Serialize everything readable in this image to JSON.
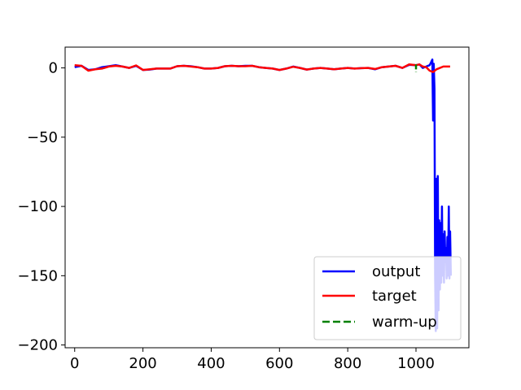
{
  "chart_data": {
    "type": "line",
    "title": "",
    "xlabel": "",
    "ylabel": "",
    "xlim": [
      -28,
      1155
    ],
    "ylim": [
      -202,
      15
    ],
    "x_ticks": [
      0,
      200,
      400,
      600,
      800,
      1000
    ],
    "y_ticks": [
      0,
      -50,
      -100,
      -150,
      -200
    ],
    "x_tick_labels": [
      "0",
      "200",
      "400",
      "600",
      "800",
      "1000"
    ],
    "y_tick_labels": [
      "0",
      "−50",
      "−100",
      "−150",
      "−200"
    ],
    "grid": false,
    "legend": {
      "position": "lower right",
      "entries": [
        "output",
        "target",
        "warm-up"
      ]
    },
    "series": [
      {
        "name": "output",
        "color": "#0000ff",
        "style": "solid",
        "points": [
          [
            0,
            0.5
          ],
          [
            20,
            1.5
          ],
          [
            40,
            -1.5
          ],
          [
            60,
            -1
          ],
          [
            80,
            0.5
          ],
          [
            100,
            1.2
          ],
          [
            120,
            2
          ],
          [
            140,
            1
          ],
          [
            160,
            0
          ],
          [
            180,
            1.5
          ],
          [
            200,
            -1.5
          ],
          [
            220,
            -1.2
          ],
          [
            240,
            -0.5
          ],
          [
            260,
            -0.5
          ],
          [
            280,
            -0.5
          ],
          [
            300,
            1.2
          ],
          [
            320,
            1.5
          ],
          [
            340,
            1.2
          ],
          [
            360,
            0.5
          ],
          [
            380,
            -0.5
          ],
          [
            400,
            -0.5
          ],
          [
            420,
            0
          ],
          [
            440,
            1.2
          ],
          [
            460,
            1.5
          ],
          [
            480,
            1.2
          ],
          [
            500,
            1.5
          ],
          [
            520,
            1.5
          ],
          [
            540,
            0.5
          ],
          [
            560,
            0
          ],
          [
            580,
            -0.5
          ],
          [
            600,
            -1.5
          ],
          [
            620,
            -0.5
          ],
          [
            640,
            1
          ],
          [
            660,
            0
          ],
          [
            680,
            -1.2
          ],
          [
            700,
            -0.5
          ],
          [
            720,
            0
          ],
          [
            740,
            -0.5
          ],
          [
            760,
            -1
          ],
          [
            780,
            -0.5
          ],
          [
            800,
            0
          ],
          [
            820,
            -0.5
          ],
          [
            840,
            -0.2
          ],
          [
            860,
            0
          ],
          [
            880,
            -1
          ],
          [
            900,
            0.5
          ],
          [
            920,
            1
          ],
          [
            940,
            1.5
          ],
          [
            960,
            0
          ],
          [
            980,
            2.2
          ],
          [
            1000,
            2
          ],
          [
            1010,
            2.5
          ],
          [
            1020,
            0
          ],
          [
            1030,
            1
          ],
          [
            1040,
            2
          ],
          [
            1044,
            4
          ],
          [
            1048,
            6
          ],
          [
            1050,
            -38
          ],
          [
            1052,
            3
          ],
          [
            1054,
            -15
          ],
          [
            1056,
            -150
          ],
          [
            1058,
            -190
          ],
          [
            1060,
            -80
          ],
          [
            1062,
            -188
          ],
          [
            1064,
            -78
          ],
          [
            1066,
            -175
          ],
          [
            1068,
            -110
          ],
          [
            1070,
            -160
          ],
          [
            1072,
            -112
          ],
          [
            1074,
            -155
          ],
          [
            1076,
            -100
          ],
          [
            1078,
            -150
          ],
          [
            1080,
            -120
          ],
          [
            1082,
            -155
          ],
          [
            1084,
            -118
          ],
          [
            1086,
            -140
          ],
          [
            1088,
            -130
          ],
          [
            1090,
            -152
          ],
          [
            1092,
            -122
          ],
          [
            1094,
            -150
          ],
          [
            1096,
            -100
          ],
          [
            1098,
            -152
          ],
          [
            1100,
            -118
          ],
          [
            1102,
            -150
          ]
        ]
      },
      {
        "name": "target",
        "color": "#ff0000",
        "style": "solid",
        "points": [
          [
            0,
            2
          ],
          [
            20,
            1.5
          ],
          [
            40,
            -2
          ],
          [
            60,
            -1
          ],
          [
            80,
            -0.5
          ],
          [
            100,
            1
          ],
          [
            120,
            1.5
          ],
          [
            140,
            1
          ],
          [
            160,
            0
          ],
          [
            180,
            1.8
          ],
          [
            200,
            -1.5
          ],
          [
            220,
            -1
          ],
          [
            240,
            -0.5
          ],
          [
            260,
            -0.5
          ],
          [
            280,
            -0.5
          ],
          [
            300,
            1.2
          ],
          [
            320,
            1.5
          ],
          [
            340,
            1
          ],
          [
            360,
            0.5
          ],
          [
            380,
            -0.5
          ],
          [
            400,
            -0.5
          ],
          [
            420,
            0
          ],
          [
            440,
            1.2
          ],
          [
            460,
            1.5
          ],
          [
            480,
            1.2
          ],
          [
            500,
            1.2
          ],
          [
            520,
            1.5
          ],
          [
            540,
            0.5
          ],
          [
            560,
            0
          ],
          [
            580,
            -0.5
          ],
          [
            600,
            -1.5
          ],
          [
            620,
            -0.5
          ],
          [
            640,
            0.8
          ],
          [
            660,
            0
          ],
          [
            680,
            -1.2
          ],
          [
            700,
            -0.5
          ],
          [
            720,
            0
          ],
          [
            740,
            -0.5
          ],
          [
            760,
            -1
          ],
          [
            780,
            -0.5
          ],
          [
            800,
            0
          ],
          [
            820,
            -0.5
          ],
          [
            840,
            -0.2
          ],
          [
            860,
            0
          ],
          [
            880,
            -0.8
          ],
          [
            900,
            0.5
          ],
          [
            920,
            1
          ],
          [
            940,
            1.5
          ],
          [
            960,
            0
          ],
          [
            980,
            2.5
          ],
          [
            1000,
            2
          ],
          [
            1010,
            2.5
          ],
          [
            1020,
            1
          ],
          [
            1030,
            0.5
          ],
          [
            1040,
            -2
          ],
          [
            1050,
            -3
          ],
          [
            1060,
            -1
          ],
          [
            1080,
            1
          ],
          [
            1100,
            1
          ]
        ]
      },
      {
        "name": "warm-up",
        "color": "#008000",
        "style": "dashed",
        "segments": [
          [
            [
              1000,
              2.5
            ],
            [
              1000,
              -3
            ]
          ]
        ]
      }
    ]
  }
}
